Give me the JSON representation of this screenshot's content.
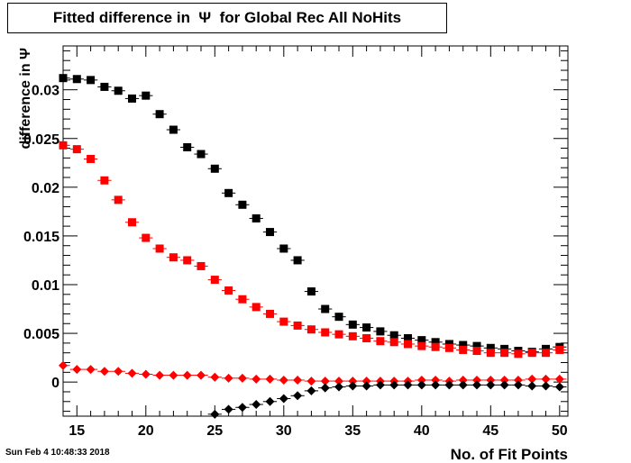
{
  "header": {
    "title": "Fitted difference in  Ψ  for Global Rec All NoHits"
  },
  "footer": {
    "timestamp": "Sun Feb  4 10:48:33 2018"
  },
  "chart_data": {
    "type": "scatter",
    "title": "Fitted difference in  Ψ  for Global Rec All NoHits",
    "xlabel": "No. of Fit Points",
    "ylabel": "difference in  Ψ",
    "xlim": [
      14,
      50.6
    ],
    "ylim": [
      -0.0035,
      0.0345
    ],
    "x_ticks": [
      {
        "v": 15,
        "label": "15"
      },
      {
        "v": 20,
        "label": "20"
      },
      {
        "v": 25,
        "label": "25"
      },
      {
        "v": 30,
        "label": "30"
      },
      {
        "v": 35,
        "label": "35"
      },
      {
        "v": 40,
        "label": "40"
      },
      {
        "v": 45,
        "label": "45"
      },
      {
        "v": 50,
        "label": "50"
      }
    ],
    "y_ticks": [
      {
        "v": 0,
        "label": "0"
      },
      {
        "v": 0.005,
        "label": "0.005"
      },
      {
        "v": 0.01,
        "label": "0.01"
      },
      {
        "v": 0.015,
        "label": "0.015"
      },
      {
        "v": 0.02,
        "label": "0.02"
      },
      {
        "v": 0.025,
        "label": "0.025"
      },
      {
        "v": 0.03,
        "label": "0.03"
      }
    ],
    "grid": false,
    "series": [
      {
        "marker": "square",
        "color": "#000000",
        "x": [
          14,
          15,
          16,
          17,
          18,
          19,
          20,
          21,
          22,
          23,
          24,
          25,
          26,
          27,
          28,
          29,
          30,
          31,
          32,
          33,
          34,
          35,
          36,
          37,
          38,
          39,
          40,
          41,
          42,
          43,
          44,
          45,
          46,
          47,
          48,
          49,
          50
        ],
        "y": [
          0.0312,
          0.0311,
          0.031,
          0.0303,
          0.0299,
          0.0291,
          0.0294,
          0.0275,
          0.0259,
          0.0241,
          0.0234,
          0.0219,
          0.0194,
          0.0182,
          0.0168,
          0.0154,
          0.0137,
          0.0125,
          0.0093,
          0.0075,
          0.0067,
          0.0059,
          0.0056,
          0.0052,
          0.0048,
          0.0045,
          0.0043,
          0.0041,
          0.0039,
          0.0038,
          0.0037,
          0.0035,
          0.0034,
          0.0032,
          0.0031,
          0.0034,
          0.0036
        ]
      },
      {
        "marker": "square",
        "color": "#ff0000",
        "x": [
          14,
          15,
          16,
          17,
          18,
          19,
          20,
          21,
          22,
          23,
          24,
          25,
          26,
          27,
          28,
          29,
          30,
          31,
          32,
          33,
          34,
          35,
          36,
          37,
          38,
          39,
          40,
          41,
          42,
          43,
          44,
          45,
          46,
          47,
          48,
          49,
          50
        ],
        "y": [
          0.0243,
          0.0239,
          0.0229,
          0.0207,
          0.0187,
          0.0164,
          0.0148,
          0.0137,
          0.0128,
          0.0125,
          0.0119,
          0.0105,
          0.0094,
          0.0085,
          0.0077,
          0.007,
          0.0062,
          0.0058,
          0.0054,
          0.0051,
          0.0049,
          0.0047,
          0.0045,
          0.0042,
          0.0041,
          0.0039,
          0.0037,
          0.0036,
          0.0035,
          0.0033,
          0.0032,
          0.003,
          0.003,
          0.0029,
          0.003,
          0.003,
          0.0033
        ]
      },
      {
        "marker": "diamond",
        "color": "#ff0000",
        "x": [
          14,
          15,
          16,
          17,
          18,
          19,
          20,
          21,
          22,
          23,
          24,
          25,
          26,
          27,
          28,
          29,
          30,
          31,
          32,
          33,
          34,
          35,
          36,
          37,
          38,
          39,
          40,
          41,
          42,
          43,
          44,
          45,
          46,
          47,
          48,
          49,
          50
        ],
        "y": [
          0.0017,
          0.0013,
          0.0013,
          0.0011,
          0.0011,
          0.0009,
          0.0008,
          0.0007,
          0.0007,
          0.0007,
          0.0007,
          0.0005,
          0.0004,
          0.0004,
          0.0003,
          0.0003,
          0.0002,
          0.0002,
          0.0001,
          0.0001,
          0.0001,
          0.0001,
          0.0001,
          0.0001,
          0.0001,
          0.0001,
          0.0002,
          0.0002,
          0.0001,
          0.0002,
          0.0002,
          0.0002,
          0.0002,
          0.0002,
          0.0003,
          0.0003,
          0.0003
        ]
      },
      {
        "marker": "diamond",
        "color": "#000000",
        "x": [
          25,
          26,
          27,
          28,
          29,
          30,
          31,
          32,
          33,
          34,
          35,
          36,
          37,
          38,
          39,
          40,
          41,
          42,
          43,
          44,
          45,
          46,
          47,
          48,
          49,
          50
        ],
        "y": [
          -0.0033,
          -0.0028,
          -0.0026,
          -0.0023,
          -0.002,
          -0.0017,
          -0.0014,
          -0.0009,
          -0.0006,
          -0.0005,
          -0.0004,
          -0.0004,
          -0.0003,
          -0.0003,
          -0.0003,
          -0.0003,
          -0.0003,
          -0.0003,
          -0.0003,
          -0.0003,
          -0.0003,
          -0.0003,
          -0.0003,
          -0.0004,
          -0.0004,
          -0.0005
        ]
      }
    ]
  }
}
